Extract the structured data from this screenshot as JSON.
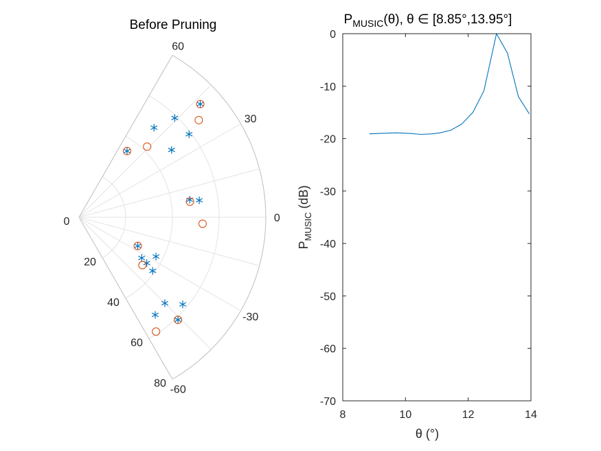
{
  "chart_data": [
    {
      "type": "scatter",
      "coordinate_system": "polar",
      "title": "Before Pruning",
      "theta_range_deg": [
        -60,
        60
      ],
      "r_range": [
        0,
        80
      ],
      "theta_ticks": [
        -60,
        -30,
        0,
        30,
        60
      ],
      "theta_tick_labels": [
        "-60",
        "-30",
        "0",
        "30",
        "60"
      ],
      "r_ticks": [
        0,
        20,
        40,
        60,
        80
      ],
      "r_tick_labels": [
        "0",
        "20",
        "40",
        "60",
        "80"
      ],
      "grid": true,
      "series": [
        {
          "marker": "asterisk",
          "color": "#0072BD",
          "points": [
            {
              "theta": 43,
              "r": 71
            },
            {
              "theta": 50,
              "r": 50
            },
            {
              "theta": 46,
              "r": 59
            },
            {
              "theta": 36,
              "r": 49
            },
            {
              "theta": 37,
              "r": 59
            },
            {
              "theta": 54,
              "r": 35
            },
            {
              "theta": 8,
              "r": 52
            },
            {
              "theta": 9,
              "r": 48
            },
            {
              "theta": -26,
              "r": 28
            },
            {
              "theta": -27,
              "r": 37
            },
            {
              "theta": -33,
              "r": 32
            },
            {
              "theta": -34,
              "r": 35
            },
            {
              "theta": -36,
              "r": 39
            },
            {
              "theta": -40,
              "r": 58
            },
            {
              "theta": -45,
              "r": 52
            },
            {
              "theta": -52,
              "r": 53
            },
            {
              "theta": -46,
              "r": 61
            }
          ]
        },
        {
          "marker": "circle",
          "color": "#D95319",
          "points": [
            {
              "theta": 43,
              "r": 71
            },
            {
              "theta": 39,
              "r": 66
            },
            {
              "theta": 46,
              "r": 42
            },
            {
              "theta": 54,
              "r": 35
            },
            {
              "theta": 8,
              "r": 48
            },
            {
              "theta": -3,
              "r": 53
            },
            {
              "theta": -26,
              "r": 28
            },
            {
              "theta": -37,
              "r": 34
            },
            {
              "theta": -46,
              "r": 61
            },
            {
              "theta": -56,
              "r": 59
            }
          ]
        }
      ]
    },
    {
      "type": "line",
      "title": {
        "main": "P",
        "sub": "MUSIC",
        "rest": "(θ), θ ∈ [8.85°,13.95°]"
      },
      "xlabel": "θ (°)",
      "ylabel": {
        "main": "P",
        "sub": "MUSIC",
        "rest": " (dB)"
      },
      "xlim": [
        8,
        14
      ],
      "ylim": [
        -70,
        0
      ],
      "xticks": [
        8,
        10,
        12,
        14
      ],
      "yticks": [
        0,
        -10,
        -20,
        -30,
        -40,
        -50,
        -60,
        -70
      ],
      "color": "#0072BD",
      "x": [
        8.85,
        9.25,
        9.7,
        10.1,
        10.5,
        10.85,
        11.1,
        11.45,
        11.8,
        12.15,
        12.5,
        12.9,
        13.25,
        13.6,
        13.95
      ],
      "y": [
        -19.1,
        -19.0,
        -18.9,
        -19.0,
        -19.2,
        -19.1,
        -18.9,
        -18.4,
        -17.2,
        -15.0,
        -10.9,
        0.0,
        -3.7,
        -12.0,
        -15.3
      ]
    }
  ]
}
